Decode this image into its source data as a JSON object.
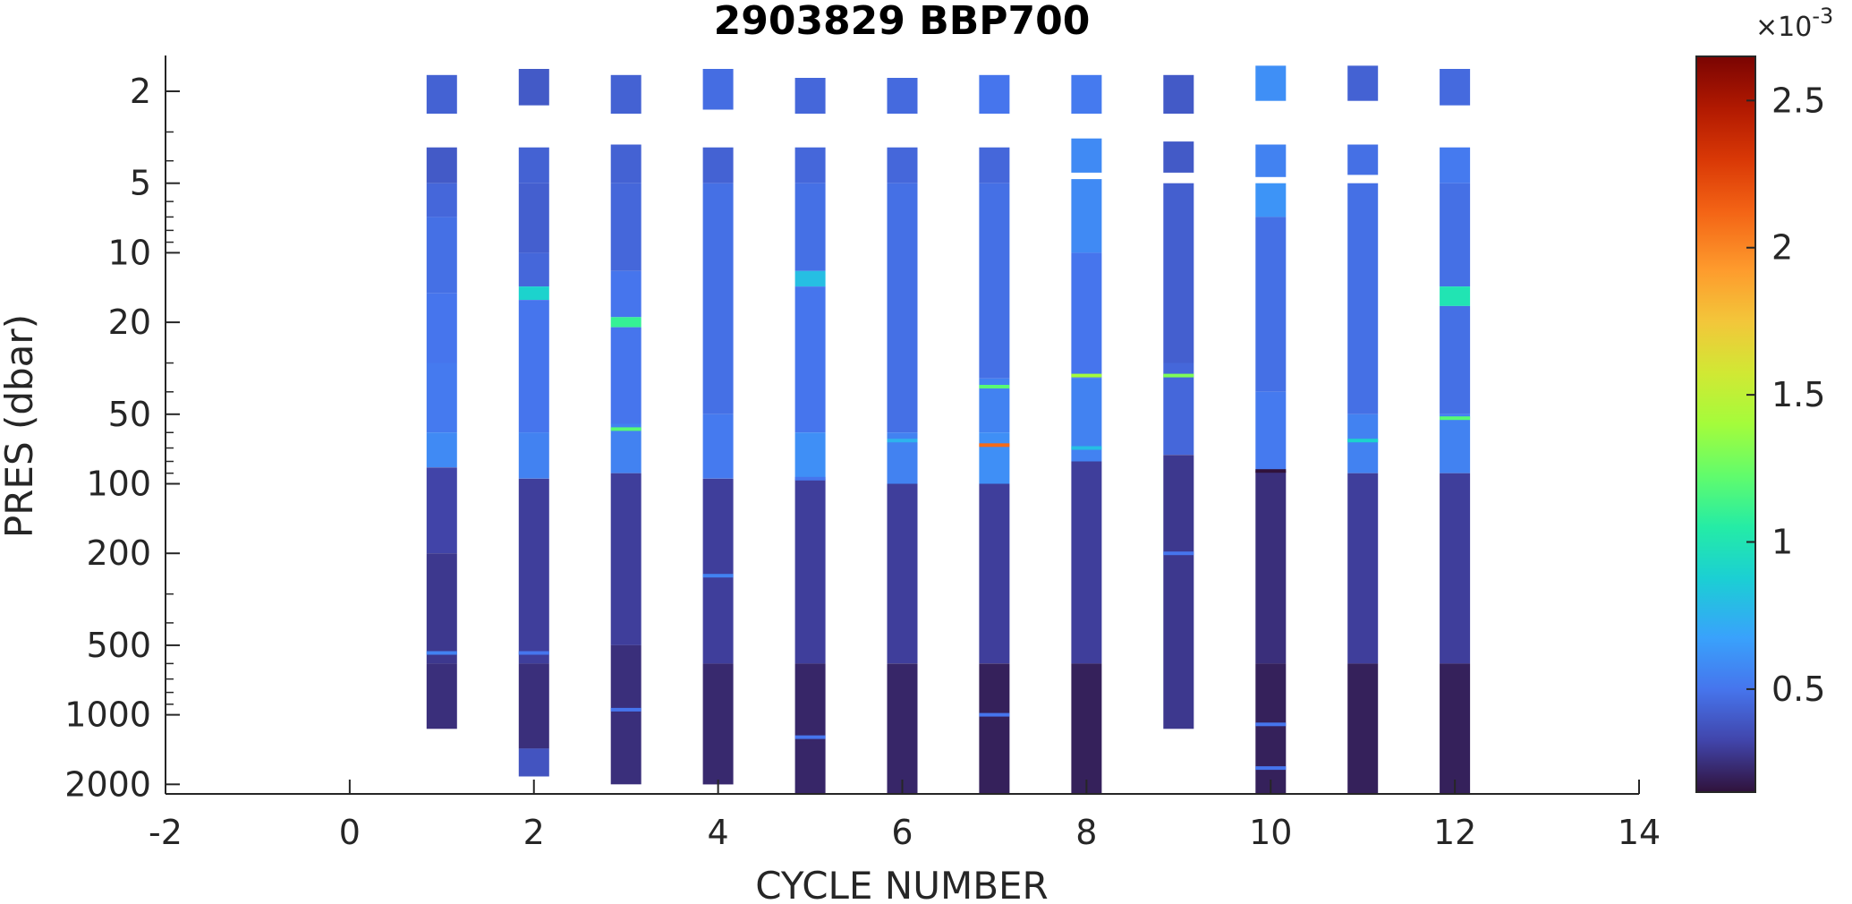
{
  "chart_data": {
    "type": "heatmap",
    "title": "2903829 BBP700",
    "xlabel": "CYCLE NUMBER",
    "ylabel": "PRES (dbar)",
    "xlim": [
      -2,
      14
    ],
    "ylim": [
      1.4,
      2200
    ],
    "yscale": "log",
    "y_reversed": true,
    "x_ticks": [
      -2,
      0,
      2,
      4,
      6,
      8,
      10,
      12,
      14
    ],
    "x_tick_labels": [
      "-2",
      "0",
      "2",
      "4",
      "6",
      "8",
      "10",
      "12",
      "14"
    ],
    "y_ticks": [
      2,
      5,
      10,
      20,
      50,
      100,
      200,
      500,
      1000,
      2000
    ],
    "y_tick_labels": [
      "2",
      "5",
      "10",
      "20",
      "50",
      "100",
      "200",
      "500",
      "1000",
      "2000"
    ],
    "colormap": "turbo",
    "colorbar": {
      "clim": [
        0.00015,
        0.00265
      ],
      "ticks": [
        0.0005,
        0.001,
        0.0015,
        0.002,
        0.0025
      ],
      "tick_labels": [
        "0.5",
        "1",
        "1.5",
        "2",
        "2.5"
      ],
      "exponent_label": "×10",
      "exponent_power": "-3"
    },
    "grid": false,
    "profiles": [
      {
        "cycle": 1,
        "top": 1.7,
        "bottom": 1150,
        "layers": [
          [
            1.7,
            2.5,
            0.00043
          ],
          [
            3.5,
            5,
            0.0004
          ],
          [
            5,
            7,
            0.00045
          ],
          [
            7,
            15,
            0.00048
          ],
          [
            15,
            30,
            0.0005
          ],
          [
            30,
            60,
            0.00052
          ],
          [
            60,
            85,
            0.00058
          ],
          [
            85,
            200,
            0.00032
          ],
          [
            200,
            600,
            0.00028
          ],
          [
            600,
            1150,
            0.00025
          ]
        ],
        "spikes": [
          [
            540,
            0.00055
          ]
        ]
      },
      {
        "cycle": 2,
        "top": 1.6,
        "bottom": 1850,
        "layers": [
          [
            1.6,
            2.3,
            0.0004
          ],
          [
            3.5,
            5,
            0.00043
          ],
          [
            5,
            10,
            0.00042
          ],
          [
            10,
            14,
            0.00045
          ],
          [
            14,
            16,
            0.0009
          ],
          [
            16,
            60,
            0.0005
          ],
          [
            60,
            95,
            0.00055
          ],
          [
            95,
            600,
            0.0003
          ],
          [
            600,
            1400,
            0.00025
          ],
          [
            1400,
            1850,
            0.00038
          ]
        ],
        "spikes": [
          [
            540,
            0.0005
          ]
        ]
      },
      {
        "cycle": 3,
        "top": 1.7,
        "bottom": 2000,
        "layers": [
          [
            1.7,
            2.5,
            0.00043
          ],
          [
            3.4,
            5,
            0.00043
          ],
          [
            5,
            12,
            0.00045
          ],
          [
            12,
            19,
            0.0005
          ],
          [
            19,
            21,
            0.0011
          ],
          [
            21,
            55,
            0.0005
          ],
          [
            55,
            90,
            0.00055
          ],
          [
            90,
            500,
            0.0003
          ],
          [
            500,
            2000,
            0.00025
          ]
        ],
        "spikes": [
          [
            58,
            0.0012
          ],
          [
            950,
            0.0005
          ]
        ]
      },
      {
        "cycle": 4,
        "top": 1.6,
        "bottom": 2000,
        "layers": [
          [
            1.6,
            2.4,
            0.00047
          ],
          [
            3.5,
            5,
            0.00043
          ],
          [
            5,
            50,
            0.00048
          ],
          [
            50,
            95,
            0.00052
          ],
          [
            95,
            600,
            0.0003
          ],
          [
            600,
            2000,
            0.00023
          ]
        ],
        "spikes": [
          [
            250,
            0.00055
          ]
        ]
      },
      {
        "cycle": 5,
        "top": 1.75,
        "bottom": 2200,
        "layers": [
          [
            1.75,
            2.5,
            0.00045
          ],
          [
            3.5,
            5,
            0.00045
          ],
          [
            5,
            12,
            0.00048
          ],
          [
            12,
            14,
            0.0008
          ],
          [
            14,
            60,
            0.0005
          ],
          [
            60,
            95,
            0.0006
          ],
          [
            95,
            600,
            0.0003
          ],
          [
            600,
            2200,
            0.00022
          ]
        ],
        "spikes": [
          [
            95,
            0.0005
          ],
          [
            1250,
            0.0005
          ]
        ]
      },
      {
        "cycle": 6,
        "top": 1.75,
        "bottom": 2200,
        "layers": [
          [
            1.75,
            2.5,
            0.00046
          ],
          [
            3.5,
            5,
            0.00045
          ],
          [
            5,
            60,
            0.00048
          ],
          [
            60,
            100,
            0.00055
          ],
          [
            100,
            600,
            0.0003
          ],
          [
            600,
            2200,
            0.00022
          ]
        ],
        "spikes": [
          [
            65,
            0.00075
          ]
        ]
      },
      {
        "cycle": 7,
        "top": 1.7,
        "bottom": 2200,
        "layers": [
          [
            1.7,
            2.5,
            0.0005
          ],
          [
            3.5,
            5,
            0.00045
          ],
          [
            5,
            35,
            0.00048
          ],
          [
            35,
            60,
            0.00055
          ],
          [
            60,
            100,
            0.0006
          ],
          [
            100,
            600,
            0.0003
          ],
          [
            600,
            2200,
            0.0002
          ]
        ],
        "spikes": [
          [
            38,
            0.0012
          ],
          [
            68,
            0.0021
          ],
          [
            1000,
            0.0005
          ]
        ]
      },
      {
        "cycle": 8,
        "top": 1.7,
        "bottom": 2200,
        "layers": [
          [
            1.7,
            2.5,
            0.00052
          ],
          [
            3.2,
            4.5,
            0.00058
          ],
          [
            4.8,
            10,
            0.00058
          ],
          [
            10,
            35,
            0.0005
          ],
          [
            35,
            80,
            0.00055
          ],
          [
            80,
            600,
            0.0003
          ],
          [
            600,
            2200,
            0.0002
          ]
        ],
        "spikes": [
          [
            34,
            0.0014
          ],
          [
            70,
            0.0008
          ]
        ]
      },
      {
        "cycle": 9,
        "top": 1.7,
        "bottom": 1150,
        "layers": [
          [
            1.7,
            2.5,
            0.0004
          ],
          [
            3.3,
            4.5,
            0.0004
          ],
          [
            5,
            30,
            0.00042
          ],
          [
            30,
            75,
            0.00045
          ],
          [
            75,
            1150,
            0.00028
          ]
        ],
        "spikes": [
          [
            34,
            0.0013
          ],
          [
            200,
            0.0005
          ]
        ]
      },
      {
        "cycle": 10,
        "top": 1.55,
        "bottom": 2200,
        "layers": [
          [
            1.55,
            2.2,
            0.0006
          ],
          [
            3.4,
            4.7,
            0.00055
          ],
          [
            5,
            7,
            0.00062
          ],
          [
            7,
            40,
            0.00048
          ],
          [
            40,
            88,
            0.00052
          ],
          [
            88,
            600,
            0.00025
          ],
          [
            600,
            2200,
            0.0002
          ]
        ],
        "spikes": [
          [
            88,
            0.00015
          ],
          [
            1100,
            0.0005
          ],
          [
            1700,
            0.0005
          ]
        ]
      },
      {
        "cycle": 11,
        "top": 1.55,
        "bottom": 2200,
        "layers": [
          [
            1.55,
            2.2,
            0.00043
          ],
          [
            3.4,
            4.6,
            0.00048
          ],
          [
            5,
            50,
            0.00048
          ],
          [
            50,
            90,
            0.00055
          ],
          [
            90,
            600,
            0.0003
          ],
          [
            600,
            2200,
            0.0002
          ]
        ],
        "spikes": [
          [
            65,
            0.0009
          ]
        ]
      },
      {
        "cycle": 12,
        "top": 1.6,
        "bottom": 2200,
        "layers": [
          [
            1.6,
            2.3,
            0.00046
          ],
          [
            3.5,
            5,
            0.00052
          ],
          [
            5,
            14,
            0.00048
          ],
          [
            14,
            17,
            0.001
          ],
          [
            17,
            50,
            0.00048
          ],
          [
            50,
            90,
            0.00055
          ],
          [
            90,
            600,
            0.0003
          ],
          [
            600,
            2200,
            0.0002
          ]
        ],
        "spikes": [
          [
            52,
            0.0012
          ]
        ]
      }
    ]
  }
}
